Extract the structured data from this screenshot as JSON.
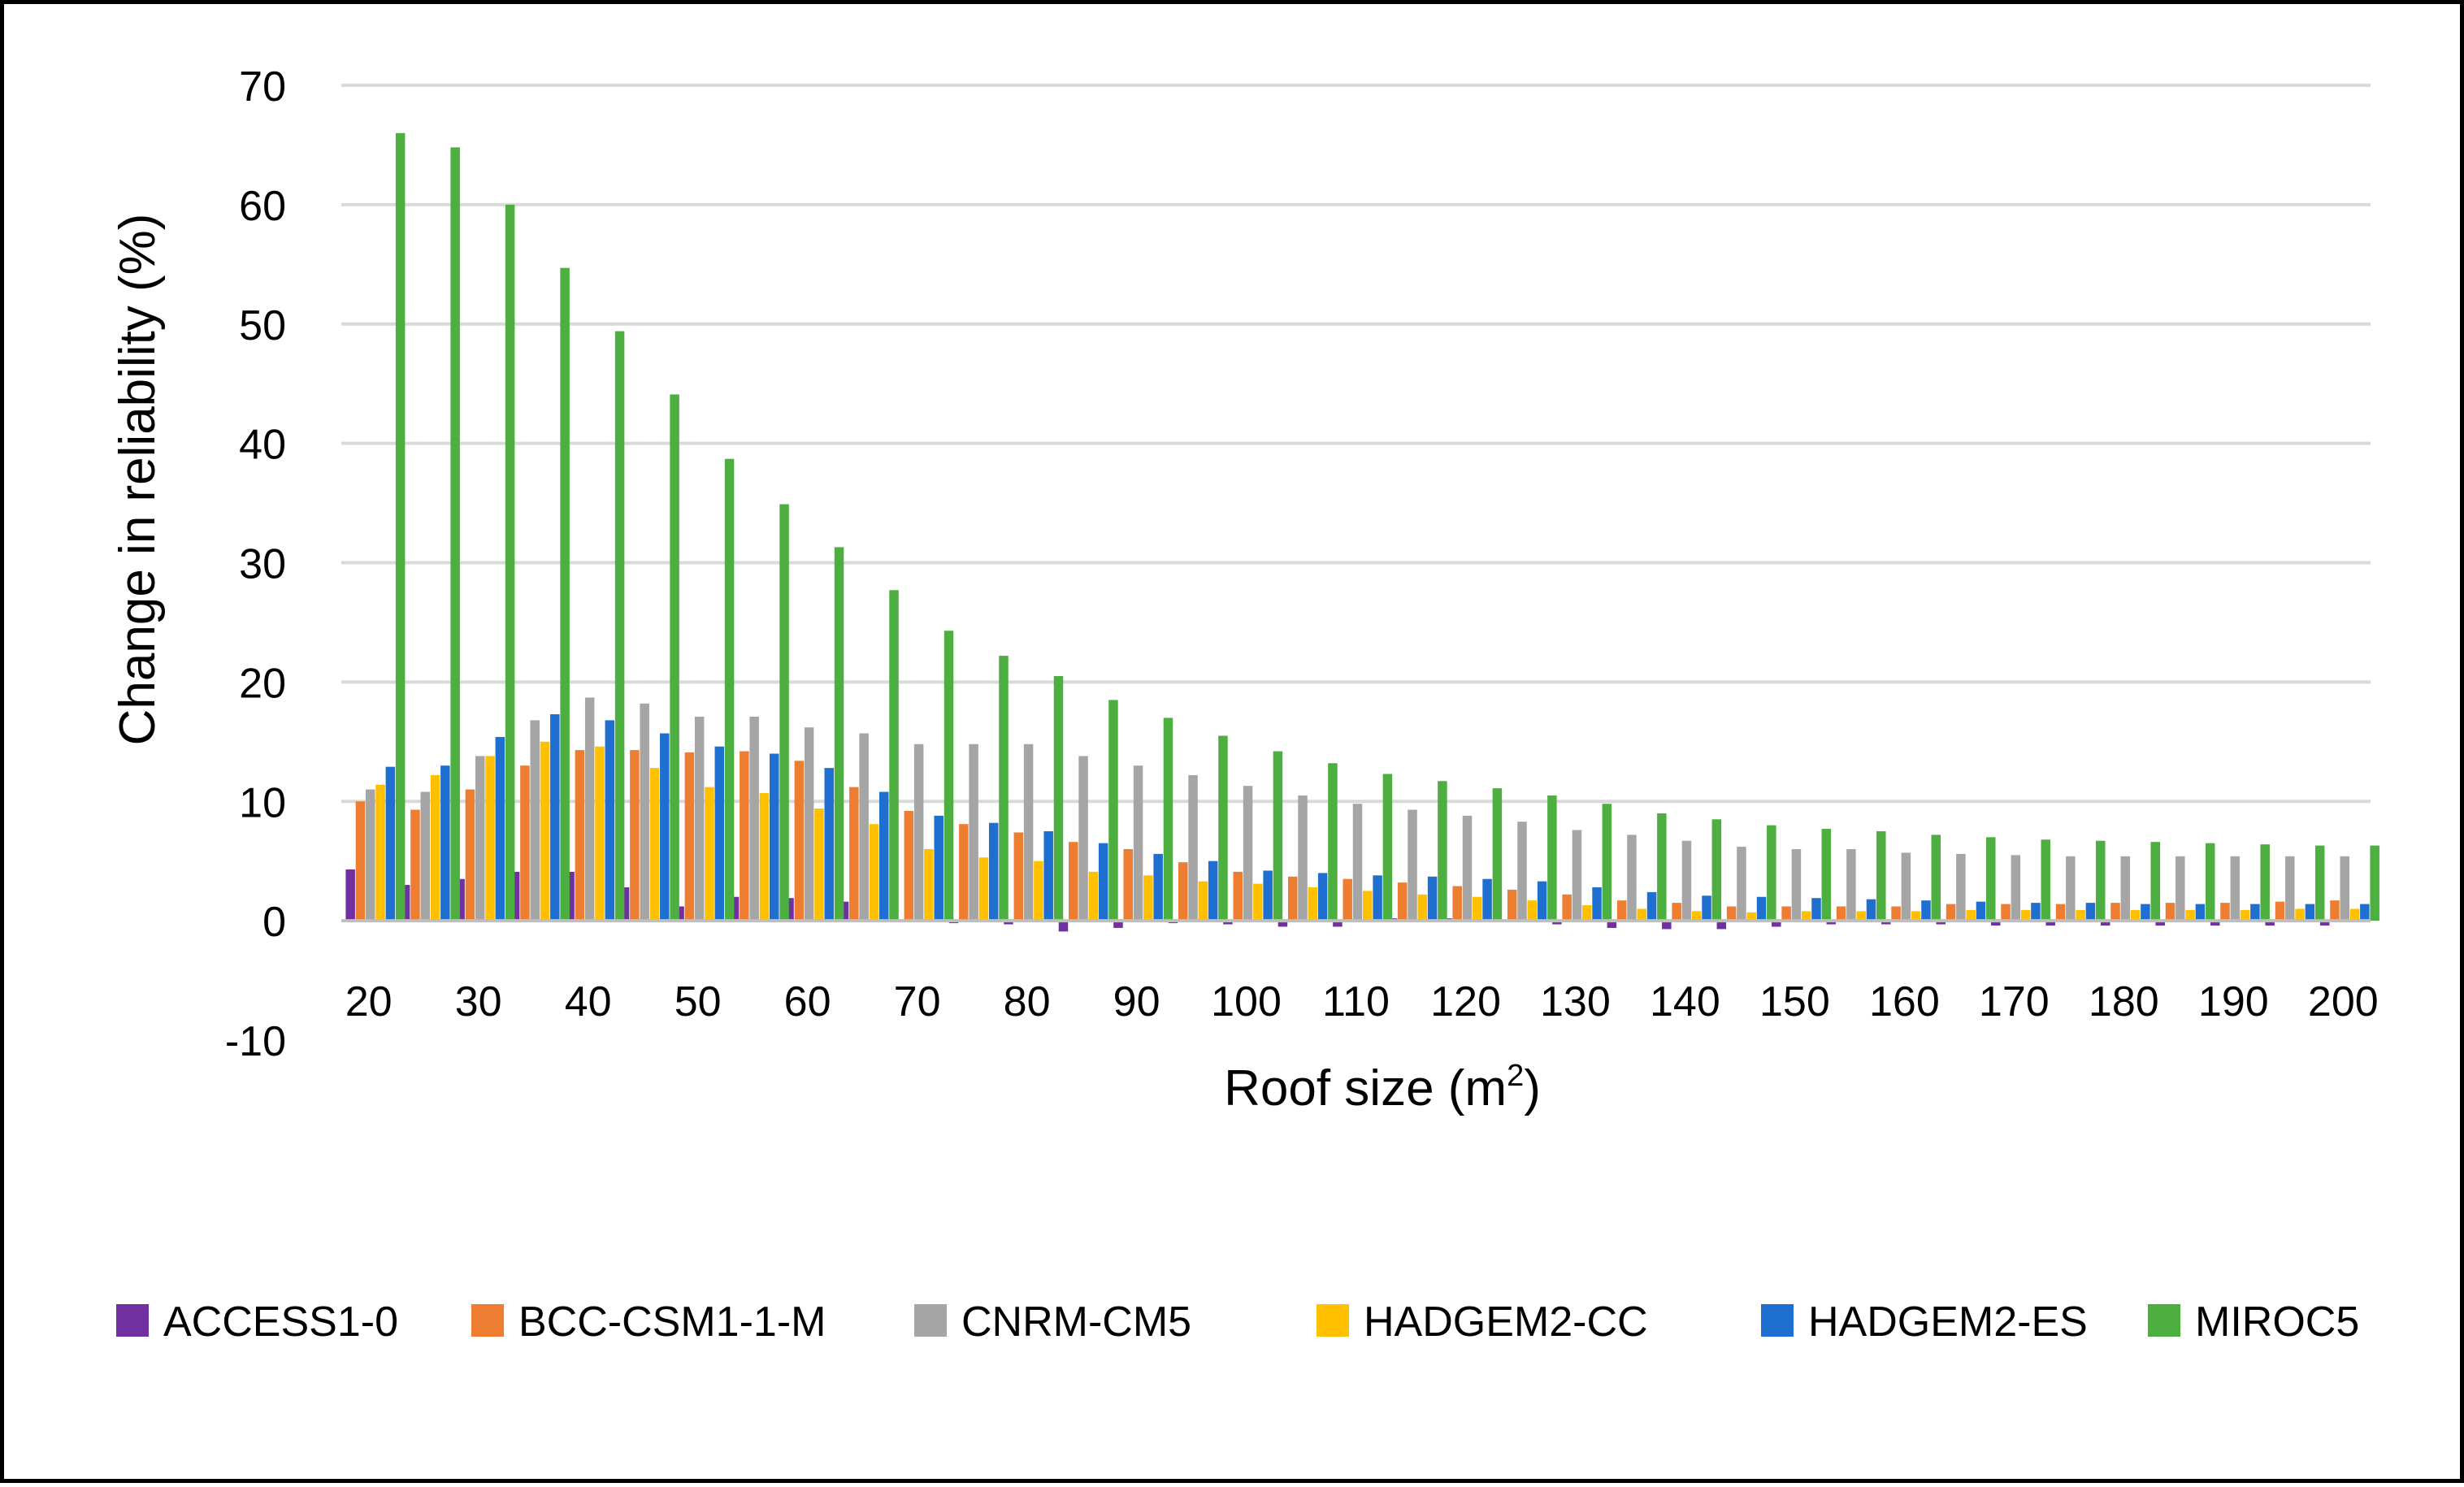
{
  "chart_data": {
    "type": "bar",
    "xlabel": "Roof size (m",
    "xlabel_sup": "2",
    "xlabel_end": ")",
    "ylabel": "Change in reliability (%)",
    "ylim": [
      -10,
      70
    ],
    "yticks": [
      70,
      60,
      50,
      40,
      30,
      20,
      10,
      0,
      -10
    ],
    "grid": true,
    "legend_position": "bottom",
    "categories": [
      20,
      25,
      30,
      35,
      40,
      45,
      50,
      55,
      60,
      65,
      70,
      75,
      80,
      85,
      90,
      95,
      100,
      105,
      110,
      115,
      120,
      125,
      130,
      135,
      140,
      145,
      150,
      155,
      160,
      165,
      170,
      175,
      180,
      185,
      190,
      195,
      200
    ],
    "tick_labels": [
      "20",
      "30",
      "40",
      "50",
      "60",
      "70",
      "80",
      "90",
      "100",
      "110",
      "120",
      "130",
      "140",
      "150",
      "160",
      "170",
      "180",
      "190",
      "200"
    ],
    "series": [
      {
        "name": "ACCESS1-0",
        "color": "#7030A0",
        "values": [
          4.3,
          3.0,
          3.5,
          4.1,
          4.1,
          2.8,
          1.2,
          2.0,
          1.9,
          1.6,
          0,
          -0.2,
          -0.3,
          -0.9,
          -0.6,
          -0.2,
          -0.3,
          -0.5,
          -0.5,
          0.2,
          0.2,
          0,
          -0.3,
          -0.6,
          -0.7,
          -0.7,
          -0.5,
          -0.3,
          -0.3,
          -0.3,
          -0.4,
          -0.4,
          -0.4,
          -0.4,
          -0.4,
          -0.4,
          -0.4
        ]
      },
      {
        "name": "BCC-CSM1-1-M",
        "color": "#ED7D31",
        "values": [
          10.0,
          9.3,
          11.0,
          13.0,
          14.3,
          14.3,
          14.1,
          14.2,
          13.4,
          11.2,
          9.2,
          8.1,
          7.4,
          6.6,
          6.0,
          4.9,
          4.1,
          3.7,
          3.5,
          3.2,
          2.9,
          2.6,
          2.2,
          1.7,
          1.5,
          1.2,
          1.2,
          1.2,
          1.2,
          1.4,
          1.4,
          1.4,
          1.5,
          1.5,
          1.5,
          1.6,
          1.7
        ]
      },
      {
        "name": "CNRM-CM5",
        "color": "#A5A5A5",
        "values": [
          11.0,
          10.8,
          13.8,
          16.8,
          18.7,
          18.2,
          17.1,
          17.1,
          16.2,
          15.7,
          14.8,
          14.8,
          14.8,
          13.8,
          13.0,
          12.2,
          11.3,
          10.5,
          9.8,
          9.3,
          8.8,
          8.3,
          7.6,
          7.2,
          6.7,
          6.2,
          6.0,
          6.0,
          5.7,
          5.6,
          5.5,
          5.4,
          5.4,
          5.4,
          5.4,
          5.4,
          5.4
        ]
      },
      {
        "name": "HADGEM2-CC",
        "color": "#FFC000",
        "values": [
          11.4,
          12.2,
          13.8,
          15.0,
          14.6,
          12.8,
          11.2,
          10.7,
          9.4,
          8.1,
          6.0,
          5.3,
          5.0,
          4.1,
          3.8,
          3.3,
          3.1,
          2.8,
          2.5,
          2.2,
          2.0,
          1.7,
          1.3,
          1.0,
          0.8,
          0.7,
          0.8,
          0.8,
          0.8,
          0.9,
          0.9,
          0.9,
          0.9,
          0.9,
          0.9,
          1.0,
          1.0
        ]
      },
      {
        "name": "HADGEM2-ES",
        "color": "#1F6FD0",
        "values": [
          12.9,
          13.0,
          15.4,
          17.3,
          16.8,
          15.7,
          14.6,
          14.0,
          12.8,
          10.8,
          8.8,
          8.2,
          7.5,
          6.5,
          5.6,
          5.0,
          4.2,
          4.0,
          3.8,
          3.7,
          3.5,
          3.3,
          2.8,
          2.4,
          2.1,
          2.0,
          1.9,
          1.8,
          1.7,
          1.6,
          1.5,
          1.5,
          1.4,
          1.4,
          1.4,
          1.4,
          1.4
        ]
      },
      {
        "name": "MIROC5",
        "color": "#4CAF3F",
        "values": [
          66.0,
          64.8,
          60.0,
          54.7,
          49.4,
          44.1,
          38.7,
          34.9,
          31.3,
          27.7,
          24.3,
          22.2,
          20.5,
          18.5,
          17.0,
          15.5,
          14.2,
          13.2,
          12.3,
          11.7,
          11.1,
          10.5,
          9.8,
          9.0,
          8.5,
          8.0,
          7.7,
          7.5,
          7.2,
          7.0,
          6.8,
          6.7,
          6.6,
          6.5,
          6.4,
          6.3,
          6.3
        ]
      }
    ]
  }
}
